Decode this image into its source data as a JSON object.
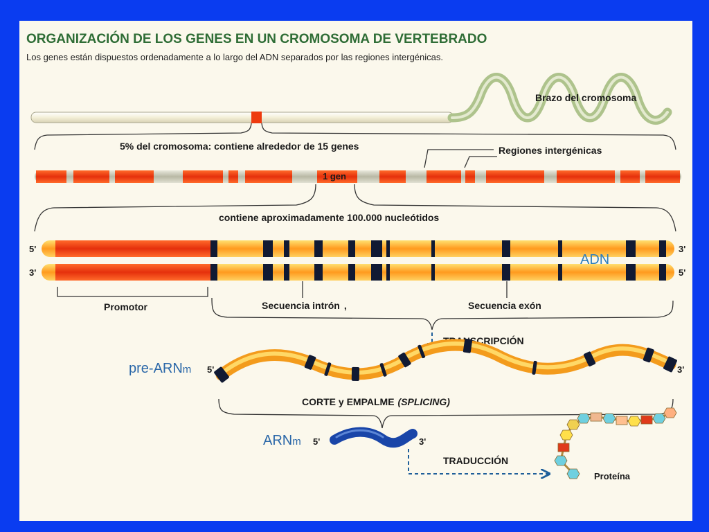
{
  "colors": {
    "frame": "#0a3cf0",
    "background": "#fbf8ec",
    "title": "#2f6d36",
    "exon": "#ee3a0e",
    "dna_light": "#ffc25a",
    "band": "#111a33",
    "mrna": "#1945a8",
    "label_blue": "#2a67a8"
  },
  "header": {
    "title": "ORGANIZACIÓN DE LOS GENES EN UN CROMOSOMA DE VERTEBRADO",
    "subtitle": "Los genes están dispuestos ordenadamente a lo largo del ADN separados por las regiones intergénicas."
  },
  "chromosome": {
    "arm_label": "Brazo del cromosoma",
    "segment_label": "5% del cromosoma: contiene alrededor de 15 genes",
    "intergenic_label": "Regiones intergénicas",
    "gene_label": "1 gen"
  },
  "gene": {
    "size_label": "contiene aproximadamente 100.000 nucleótidos",
    "strand_top_left": "5'",
    "strand_top_right": "3'",
    "strand_bottom_left": "3'",
    "strand_bottom_right": "5'",
    "dna_label": "ADN",
    "promoter_label": "Promotor",
    "intron_label": "Secuencia intrón",
    "intron_suffix": ",",
    "exon_label": "Secuencia exón"
  },
  "process": {
    "transcription_label": "TRANSCRIPCIÓN",
    "pre_mrna_label": "pre-ARN",
    "pre_mrna_sub": "m",
    "pre_mrna_5": "5'",
    "pre_mrna_3": "3'",
    "splicing_label": "CORTE y EMPALME",
    "splicing_italic": "(SPLICING)",
    "mrna_label": "ARN",
    "mrna_sub": "m",
    "mrna_5": "5'",
    "mrna_3": "3'",
    "translation_label": "TRADUCCIÓN",
    "protein_label": "Proteína"
  }
}
